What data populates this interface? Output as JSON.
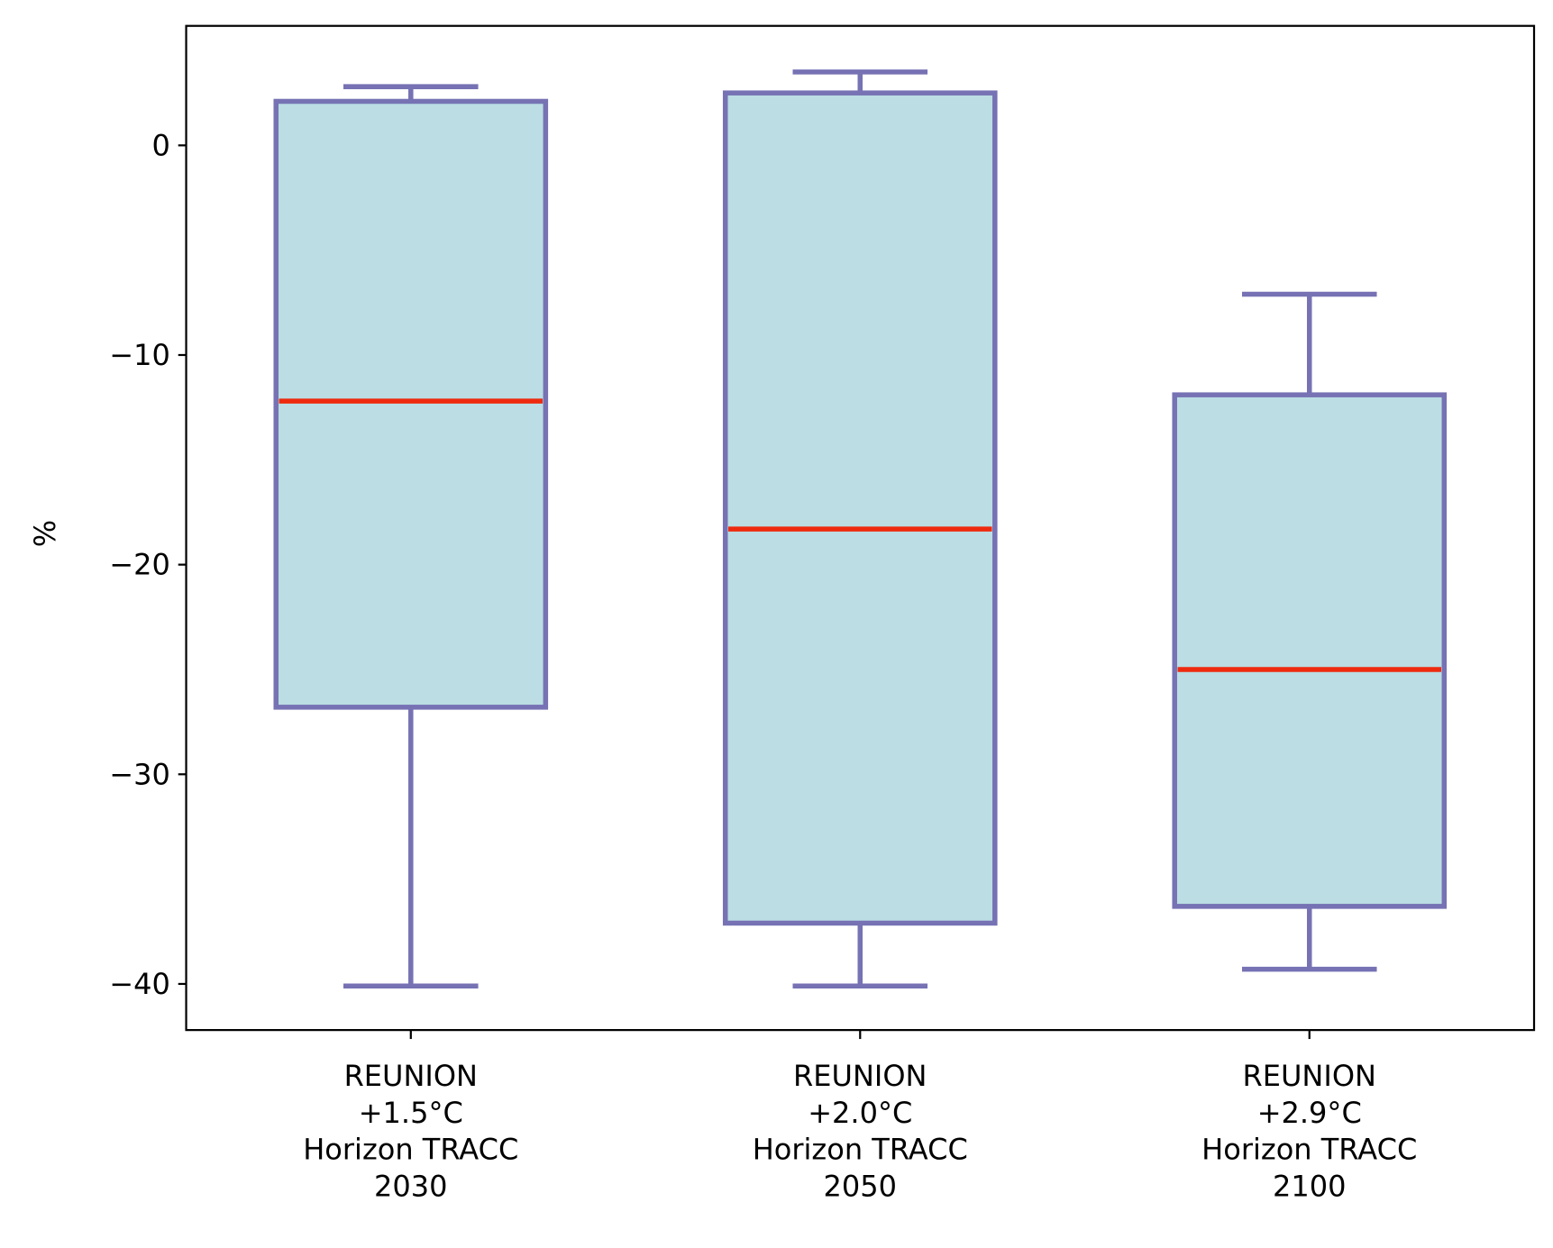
{
  "chart_data": {
    "type": "box",
    "title": "",
    "xlabel": "",
    "ylabel": "%",
    "ylim": [
      -42.2,
      5.7
    ],
    "yticks": [
      0,
      -10,
      -20,
      -30,
      -40
    ],
    "ytick_labels": [
      "0",
      "−10",
      "−20",
      "−30",
      "−40"
    ],
    "categories": [
      [
        "REUNION",
        "+1.5°C",
        "Horizon TRACC",
        "2030"
      ],
      [
        "REUNION",
        "+2.0°C",
        "Horizon TRACC",
        "2050"
      ],
      [
        "REUNION",
        "+2.9°C",
        "Horizon TRACC",
        "2100"
      ]
    ],
    "boxes": [
      {
        "whisker_low": -40.1,
        "q1": -26.8,
        "median": -12.2,
        "q3": 2.1,
        "whisker_high": 2.8
      },
      {
        "whisker_low": -40.1,
        "q1": -37.1,
        "median": -18.3,
        "q3": 2.5,
        "whisker_high": 3.5
      },
      {
        "whisker_low": -39.3,
        "q1": -36.3,
        "median": -25.0,
        "q3": -11.9,
        "whisker_high": -7.1
      }
    ],
    "colors": {
      "box_fill": "#bbdde3",
      "box_edge": "#7672b4",
      "median": "#ee2a0e"
    }
  }
}
